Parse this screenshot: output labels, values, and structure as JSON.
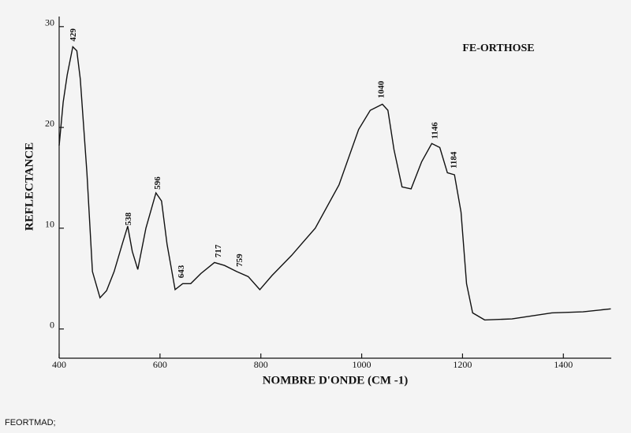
{
  "chart_data": {
    "type": "line",
    "title": "FE-ORTHOSE",
    "x_label": "NOMBRE D'ONDE (CM -1)",
    "y_label": "REFLECTANCE",
    "footer": "FEORTMAD;",
    "xlim": [
      400,
      1495
    ],
    "ylim": [
      -2.9,
      31
    ],
    "xticks": [
      400,
      600,
      800,
      1000,
      1200,
      1400
    ],
    "yticks": [
      0,
      10,
      20,
      30
    ],
    "color": "#111111",
    "x": [
      400,
      408,
      416,
      427,
      435,
      442,
      455,
      466,
      481,
      494,
      509,
      525,
      536,
      545,
      556,
      572,
      592,
      603,
      614,
      630,
      645,
      661,
      681,
      708,
      728,
      752,
      775,
      798,
      822,
      861,
      908,
      955,
      994,
      1017,
      1041,
      1052,
      1064,
      1080,
      1098,
      1119,
      1139,
      1155,
      1170,
      1184,
      1197,
      1208,
      1220,
      1244,
      1298,
      1377,
      1439,
      1494
    ],
    "values": [
      18.2,
      22.5,
      25.2,
      28,
      27.6,
      24.8,
      15.5,
      5.7,
      3.1,
      3.8,
      5.7,
      8.4,
      10.2,
      7.7,
      5.9,
      10,
      13.5,
      12.7,
      8.4,
      3.9,
      4.5,
      4.5,
      5.5,
      6.6,
      6.3,
      5.7,
      5.2,
      3.9,
      5.3,
      7.3,
      10,
      14.3,
      19.8,
      21.7,
      22.3,
      21.7,
      17.8,
      14.1,
      13.9,
      16.6,
      18.4,
      18,
      15.5,
      15.3,
      11.6,
      4.5,
      1.6,
      0.9,
      1,
      1.6,
      1.7,
      2
    ],
    "annotations": [
      429,
      538,
      596,
      643,
      717,
      759,
      1040,
      1146,
      1184
    ]
  }
}
